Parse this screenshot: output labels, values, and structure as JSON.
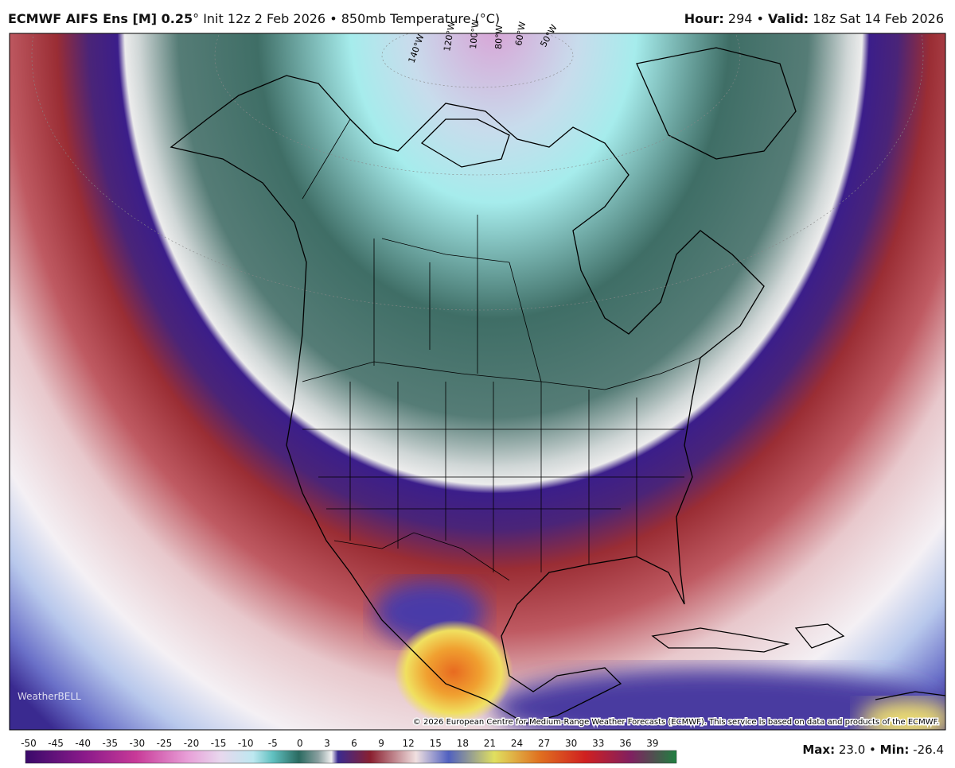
{
  "header": {
    "model": "ECMWF AIFS Ens [M] 0.25",
    "description": "° Init 12z 2 Feb 2026 • 850mb Temperature (°C)",
    "hour_label": "Hour:",
    "hour": " 294 • ",
    "valid_label": "Valid:",
    "valid": " 18z Sat 14 Feb 2026"
  },
  "map": {
    "longitude_labels": [
      "140°W",
      "120°W",
      "100°W",
      "80°W",
      "60°W",
      "50°W"
    ],
    "logo": "WeatherBELL",
    "credit": "© 2026 European Centre for Medium-Range Weather Forecasts (ECMWF). This service is based on data and products of the ECMWF."
  },
  "colorbar": {
    "labels": [
      -50,
      -45,
      -40,
      -35,
      -30,
      -25,
      -20,
      -15,
      -10,
      -5,
      0,
      3,
      6,
      9,
      12,
      15,
      18,
      21,
      24,
      27,
      30,
      33,
      36,
      39
    ]
  },
  "footer": {
    "max_label": "Max:",
    "max": " 23.0 • ",
    "min_label": "Min:",
    "min": " -26.4"
  }
}
